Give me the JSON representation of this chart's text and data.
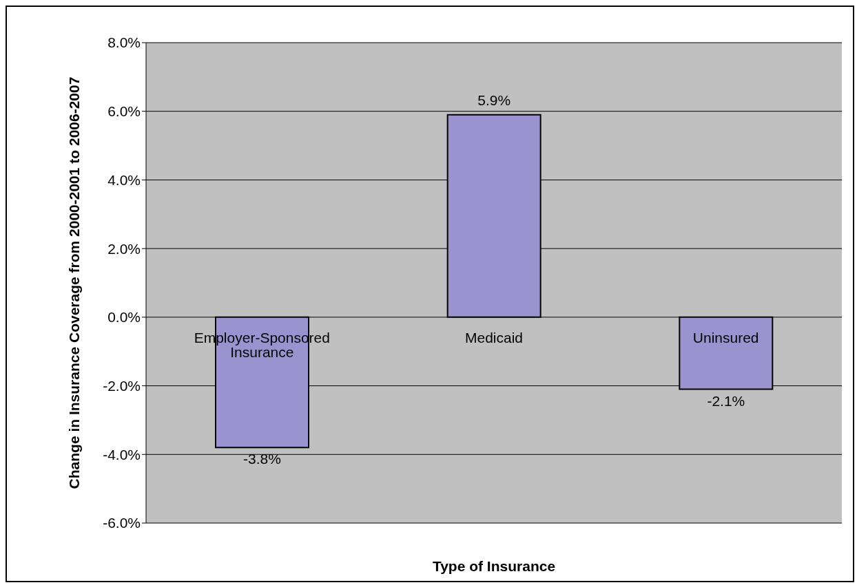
{
  "chart_data": {
    "type": "bar",
    "xlabel": "Type of Insurance",
    "ylabel": "Change in Insurance Coverage from 2000-2001 to 2006-2007",
    "categories": [
      "Employer-Sponsored Insurance",
      "Medicaid",
      "Uninsured"
    ],
    "values": [
      -3.8,
      5.9,
      -2.1
    ],
    "value_labels": [
      "-3.8%",
      "5.9%",
      "-2.1%"
    ],
    "color": "#9b93cf",
    "ylim": [
      -6,
      8
    ],
    "yticks": [
      {
        "value": -6,
        "label": "-6.0%"
      },
      {
        "value": -4,
        "label": "-4.0%"
      },
      {
        "value": -2,
        "label": "-2.0%"
      },
      {
        "value": 0,
        "label": "0.0%"
      },
      {
        "value": 2,
        "label": "2.0%"
      },
      {
        "value": 4,
        "label": "4.0%"
      },
      {
        "value": 6,
        "label": "6.0%"
      },
      {
        "value": 8,
        "label": "8.0%"
      }
    ],
    "grid": "y"
  }
}
